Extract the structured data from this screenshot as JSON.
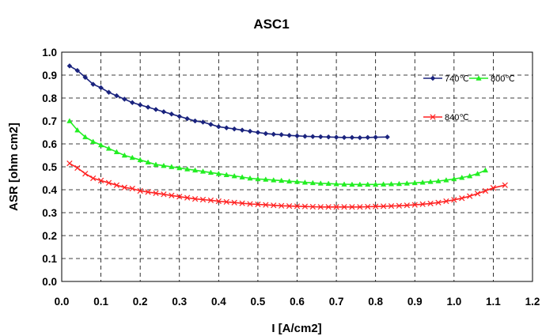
{
  "chart_data": {
    "type": "line",
    "title": "ASC1",
    "xlabel": "I [A/cm2]",
    "ylabel": "ASR [ohm cm2]",
    "xlim": [
      0.0,
      1.2
    ],
    "ylim": [
      0.0,
      1.0
    ],
    "xticks": [
      "0.0",
      "0.1",
      "0.2",
      "0.3",
      "0.4",
      "0.5",
      "0.6",
      "0.7",
      "0.8",
      "0.9",
      "1.0",
      "1.1",
      "1.2"
    ],
    "yticks": [
      "0.0",
      "0.1",
      "0.2",
      "0.3",
      "0.4",
      "0.5",
      "0.6",
      "0.7",
      "0.8",
      "0.9",
      "1.0"
    ],
    "grid": true,
    "legend_position": "right",
    "series": [
      {
        "name": "740℃",
        "color": "#1a237e",
        "marker": "diamond",
        "x": [
          0.02,
          0.04,
          0.06,
          0.08,
          0.1,
          0.12,
          0.14,
          0.16,
          0.18,
          0.2,
          0.22,
          0.24,
          0.26,
          0.28,
          0.3,
          0.32,
          0.34,
          0.36,
          0.38,
          0.4,
          0.42,
          0.44,
          0.46,
          0.48,
          0.5,
          0.52,
          0.54,
          0.56,
          0.58,
          0.6,
          0.62,
          0.64,
          0.66,
          0.68,
          0.7,
          0.72,
          0.74,
          0.76,
          0.78,
          0.8,
          0.83
        ],
        "y": [
          0.94,
          0.92,
          0.89,
          0.86,
          0.845,
          0.825,
          0.81,
          0.795,
          0.78,
          0.77,
          0.76,
          0.75,
          0.74,
          0.73,
          0.72,
          0.71,
          0.7,
          0.695,
          0.685,
          0.675,
          0.67,
          0.665,
          0.66,
          0.655,
          0.65,
          0.645,
          0.642,
          0.64,
          0.637,
          0.635,
          0.633,
          0.632,
          0.631,
          0.63,
          0.629,
          0.628,
          0.628,
          0.627,
          0.628,
          0.629,
          0.63
        ]
      },
      {
        "name": "800℃",
        "color": "#22ee22",
        "marker": "triangle",
        "x": [
          0.02,
          0.04,
          0.06,
          0.08,
          0.1,
          0.12,
          0.14,
          0.16,
          0.18,
          0.2,
          0.22,
          0.24,
          0.26,
          0.28,
          0.3,
          0.32,
          0.34,
          0.36,
          0.38,
          0.4,
          0.42,
          0.44,
          0.46,
          0.48,
          0.5,
          0.52,
          0.54,
          0.56,
          0.58,
          0.6,
          0.62,
          0.64,
          0.66,
          0.68,
          0.7,
          0.72,
          0.74,
          0.76,
          0.78,
          0.8,
          0.82,
          0.84,
          0.86,
          0.88,
          0.9,
          0.92,
          0.94,
          0.96,
          0.98,
          1.0,
          1.02,
          1.04,
          1.06,
          1.08
        ],
        "y": [
          0.7,
          0.66,
          0.63,
          0.61,
          0.595,
          0.58,
          0.565,
          0.55,
          0.54,
          0.53,
          0.52,
          0.51,
          0.505,
          0.5,
          0.495,
          0.49,
          0.485,
          0.48,
          0.475,
          0.47,
          0.465,
          0.46,
          0.455,
          0.45,
          0.447,
          0.445,
          0.442,
          0.44,
          0.437,
          0.435,
          0.432,
          0.43,
          0.428,
          0.427,
          0.425,
          0.424,
          0.423,
          0.423,
          0.423,
          0.423,
          0.424,
          0.425,
          0.426,
          0.428,
          0.43,
          0.432,
          0.435,
          0.438,
          0.442,
          0.447,
          0.453,
          0.46,
          0.47,
          0.485
        ]
      },
      {
        "name": "840℃",
        "color": "#ff2222",
        "marker": "x",
        "x": [
          0.02,
          0.04,
          0.06,
          0.08,
          0.1,
          0.12,
          0.14,
          0.16,
          0.18,
          0.2,
          0.22,
          0.24,
          0.26,
          0.28,
          0.3,
          0.32,
          0.34,
          0.36,
          0.38,
          0.4,
          0.42,
          0.44,
          0.46,
          0.48,
          0.5,
          0.52,
          0.54,
          0.56,
          0.58,
          0.6,
          0.62,
          0.64,
          0.66,
          0.68,
          0.7,
          0.72,
          0.74,
          0.76,
          0.78,
          0.8,
          0.82,
          0.84,
          0.86,
          0.88,
          0.9,
          0.92,
          0.94,
          0.96,
          0.98,
          1.0,
          1.02,
          1.04,
          1.06,
          1.08,
          1.1,
          1.13
        ],
        "y": [
          0.515,
          0.495,
          0.47,
          0.45,
          0.44,
          0.43,
          0.42,
          0.41,
          0.405,
          0.395,
          0.39,
          0.385,
          0.38,
          0.375,
          0.37,
          0.365,
          0.36,
          0.357,
          0.354,
          0.35,
          0.347,
          0.344,
          0.341,
          0.338,
          0.336,
          0.334,
          0.332,
          0.33,
          0.329,
          0.328,
          0.327,
          0.326,
          0.325,
          0.325,
          0.325,
          0.325,
          0.325,
          0.325,
          0.326,
          0.327,
          0.328,
          0.329,
          0.33,
          0.332,
          0.334,
          0.337,
          0.34,
          0.344,
          0.35,
          0.356,
          0.363,
          0.372,
          0.383,
          0.395,
          0.408,
          0.42
        ]
      }
    ]
  }
}
